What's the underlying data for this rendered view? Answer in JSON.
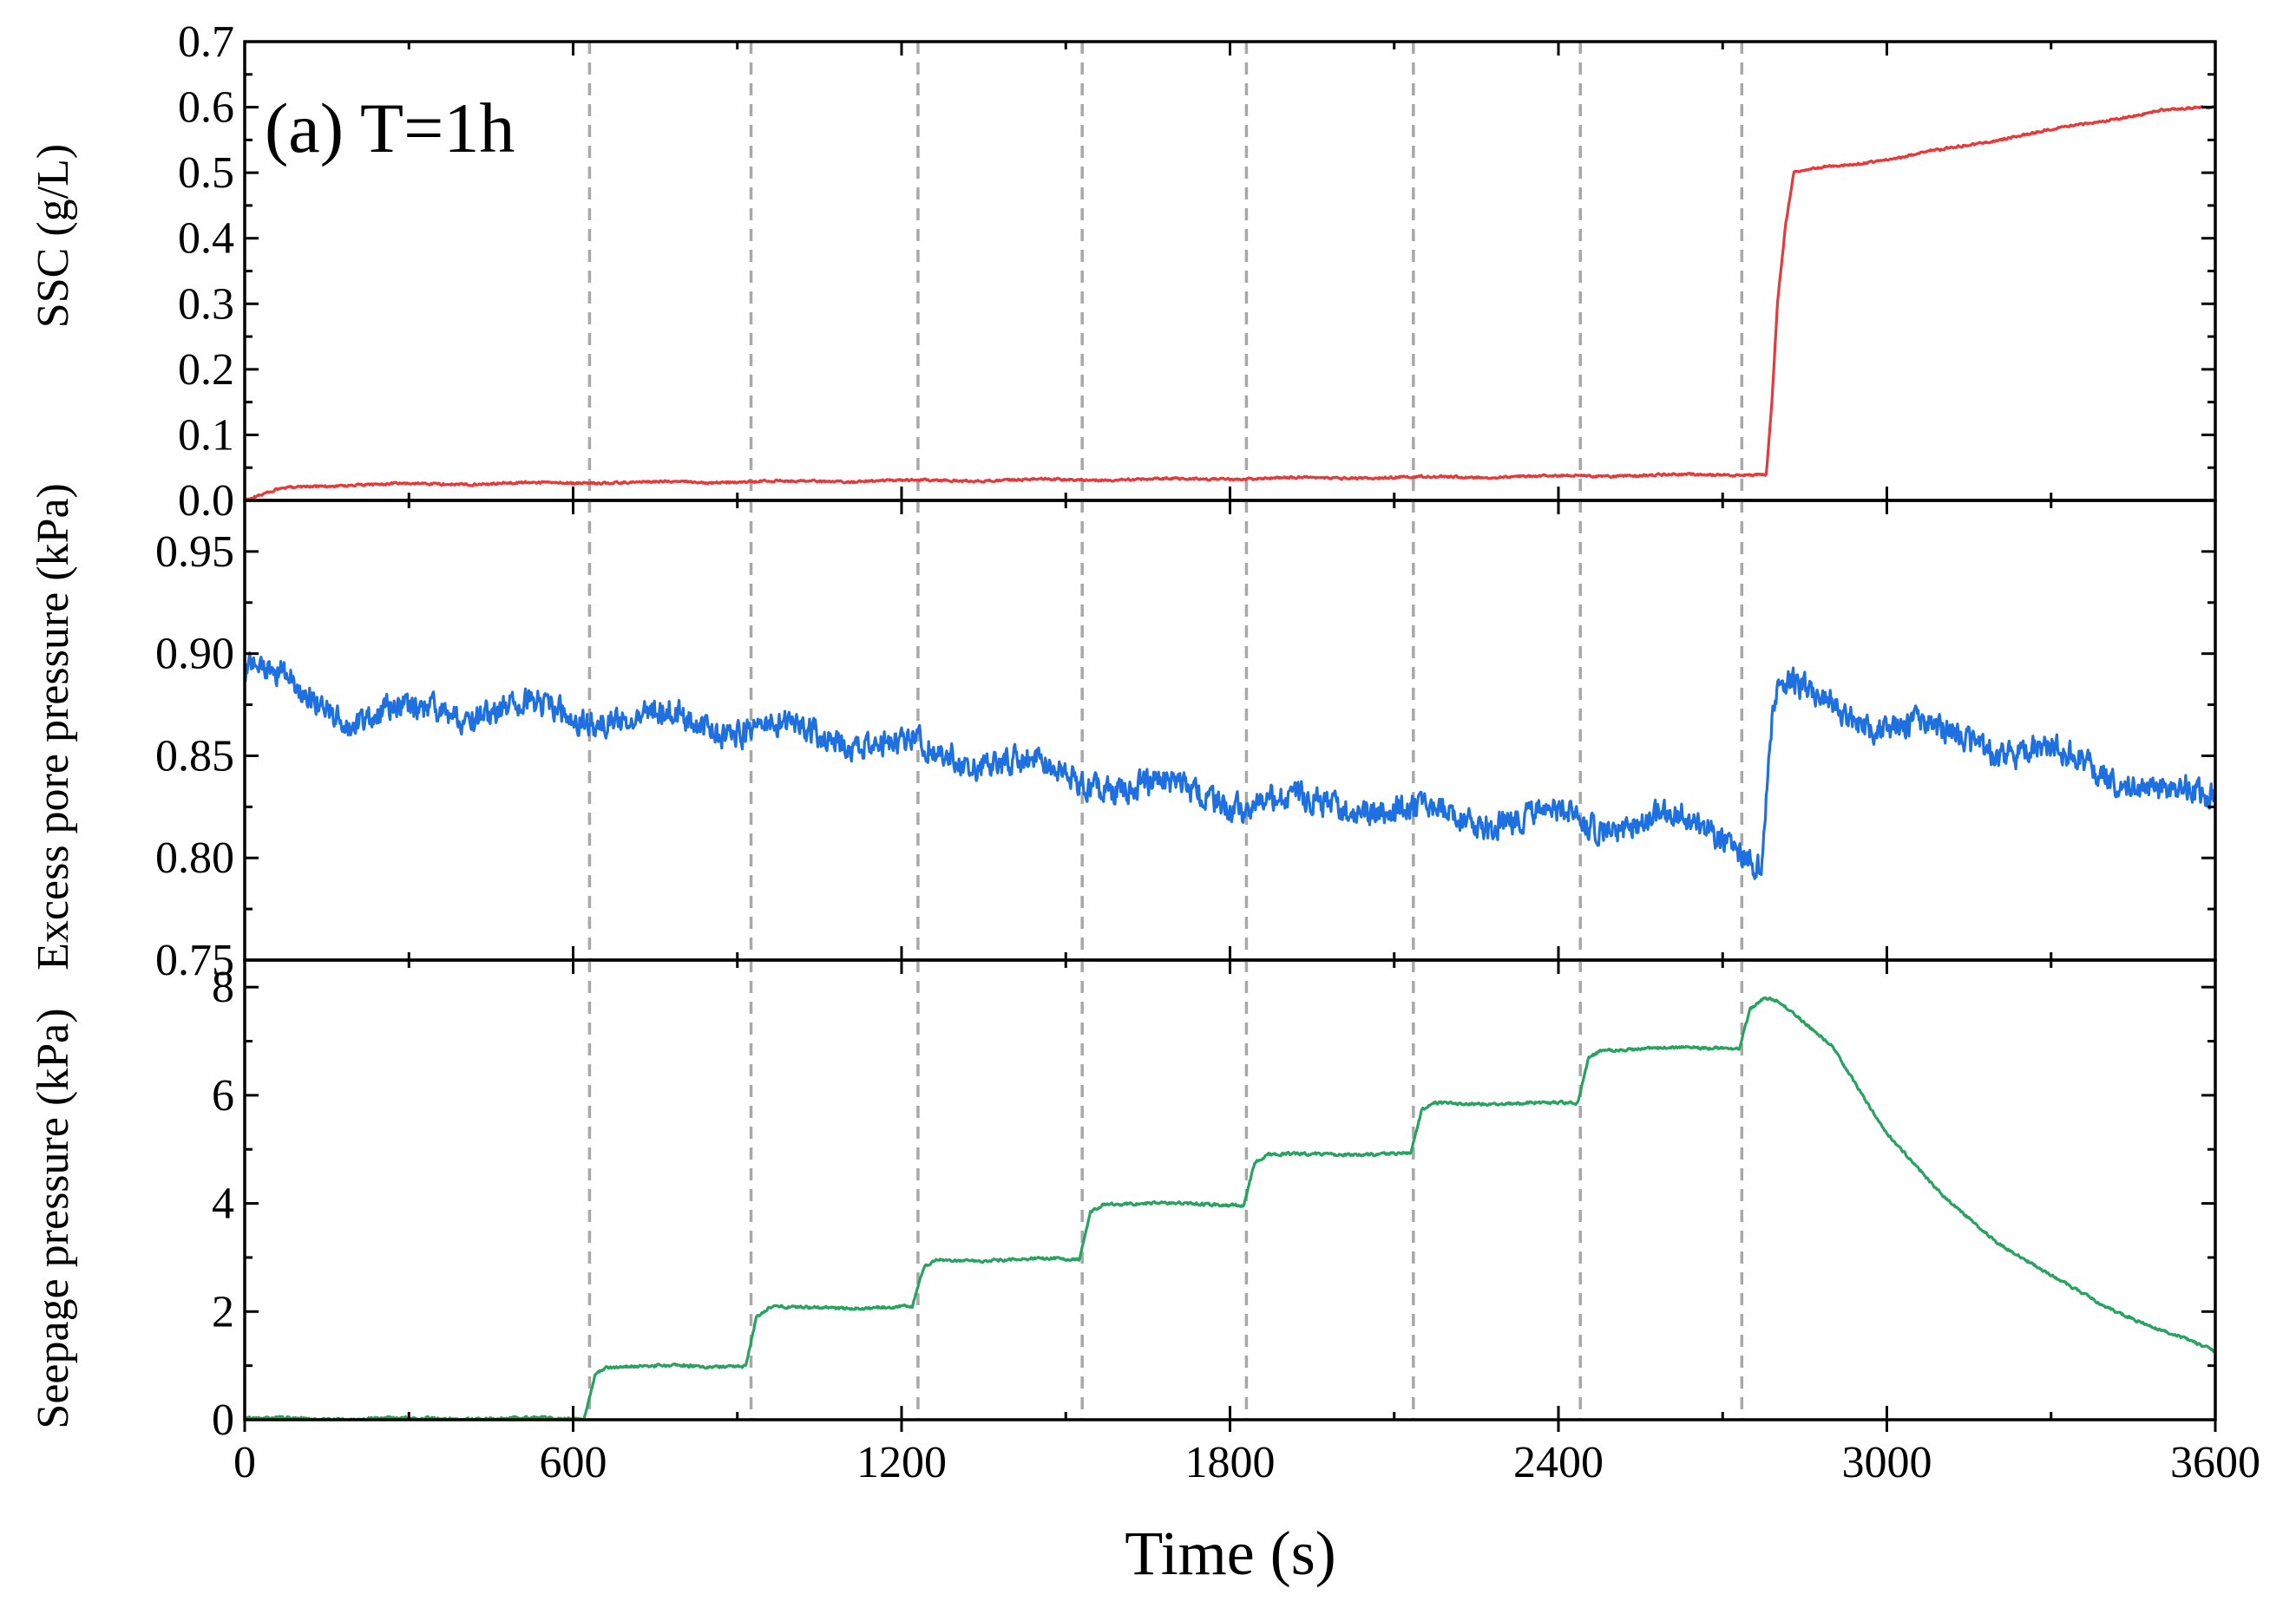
{
  "chart_data": {
    "type": "line",
    "panel_label": "(a) T=1h",
    "x": {
      "label": "Time (s)",
      "range": [
        0,
        3600
      ],
      "ticks": [
        0,
        600,
        1200,
        1800,
        2400,
        3000,
        3600
      ],
      "tick_labels": [
        "0",
        "600",
        "1200",
        "1800",
        "2400",
        "3000",
        "3600"
      ]
    },
    "reference_lines_x": [
      630,
      925,
      1230,
      1530,
      1830,
      2135,
      2440,
      2735
    ],
    "panels": [
      {
        "name": "ssc",
        "ylabel": "SSC (g/L)",
        "color": "#e8393a",
        "ylim": [
          0,
          0.7
        ],
        "ticks": [
          0.0,
          0.1,
          0.2,
          0.3,
          0.4,
          0.5,
          0.6,
          0.7
        ],
        "tick_labels": [
          "0.0",
          "0.1",
          "0.2",
          "0.3",
          "0.4",
          "0.5",
          "0.6",
          "0.7"
        ],
        "noise": 0.004,
        "points": [
          [
            0,
            0.0
          ],
          [
            30,
            0.008
          ],
          [
            60,
            0.016
          ],
          [
            100,
            0.021
          ],
          [
            200,
            0.024
          ],
          [
            600,
            0.027
          ],
          [
            1200,
            0.03
          ],
          [
            1800,
            0.033
          ],
          [
            2400,
            0.037
          ],
          [
            2780,
            0.04
          ],
          [
            2790,
            0.15
          ],
          [
            2800,
            0.3
          ],
          [
            2815,
            0.42
          ],
          [
            2830,
            0.5
          ],
          [
            2900,
            0.51
          ],
          [
            3000,
            0.52
          ],
          [
            3100,
            0.535
          ],
          [
            3200,
            0.55
          ],
          [
            3300,
            0.565
          ],
          [
            3400,
            0.58
          ],
          [
            3500,
            0.595
          ],
          [
            3600,
            0.6
          ]
        ]
      },
      {
        "name": "excess-pore-pressure",
        "ylabel": "Excess pore pressure (kPa)",
        "color": "#1e6fe0",
        "ylim": [
          0.75,
          0.975
        ],
        "ticks": [
          0.75,
          0.8,
          0.85,
          0.9,
          0.95
        ],
        "tick_labels": [
          "0.75",
          "0.80",
          "0.85",
          "0.90",
          "0.95"
        ],
        "noise": 0.016,
        "points": [
          [
            0,
            0.893
          ],
          [
            100,
            0.883
          ],
          [
            200,
            0.869
          ],
          [
            300,
            0.87
          ],
          [
            400,
            0.873
          ],
          [
            500,
            0.872
          ],
          [
            630,
            0.87
          ],
          [
            800,
            0.868
          ],
          [
            925,
            0.863
          ],
          [
            1100,
            0.86
          ],
          [
            1230,
            0.853
          ],
          [
            1400,
            0.847
          ],
          [
            1530,
            0.838
          ],
          [
            1700,
            0.833
          ],
          [
            1830,
            0.827
          ],
          [
            2000,
            0.826
          ],
          [
            2135,
            0.822
          ],
          [
            2300,
            0.82
          ],
          [
            2440,
            0.818
          ],
          [
            2600,
            0.818
          ],
          [
            2700,
            0.812
          ],
          [
            2770,
            0.798
          ],
          [
            2790,
            0.87
          ],
          [
            2800,
            0.885
          ],
          [
            2900,
            0.875
          ],
          [
            3000,
            0.865
          ],
          [
            3100,
            0.86
          ],
          [
            3200,
            0.855
          ],
          [
            3300,
            0.85
          ],
          [
            3400,
            0.842
          ],
          [
            3500,
            0.832
          ],
          [
            3600,
            0.828
          ]
        ]
      },
      {
        "name": "seepage-pressure",
        "ylabel": "Seepage pressure (kPa)",
        "color": "#27a35f",
        "ylim": [
          0,
          8.5
        ],
        "ticks": [
          0,
          2,
          4,
          6,
          8
        ],
        "tick_labels": [
          "0",
          "2",
          "4",
          "6",
          "8"
        ],
        "noise": 0.06,
        "points": [
          [
            0,
            0.02
          ],
          [
            620,
            0.02
          ],
          [
            640,
            0.85
          ],
          [
            660,
            0.98
          ],
          [
            915,
            1.0
          ],
          [
            935,
            1.9
          ],
          [
            960,
            2.07
          ],
          [
            1220,
            2.08
          ],
          [
            1240,
            2.8
          ],
          [
            1265,
            2.95
          ],
          [
            1525,
            2.97
          ],
          [
            1545,
            3.85
          ],
          [
            1570,
            4.0
          ],
          [
            1825,
            3.98
          ],
          [
            1845,
            4.75
          ],
          [
            1870,
            4.9
          ],
          [
            2130,
            4.92
          ],
          [
            2150,
            5.7
          ],
          [
            2175,
            5.85
          ],
          [
            2435,
            5.85
          ],
          [
            2455,
            6.7
          ],
          [
            2480,
            6.85
          ],
          [
            2730,
            6.88
          ],
          [
            2750,
            7.6
          ],
          [
            2775,
            7.8
          ],
          [
            2800,
            7.75
          ],
          [
            2900,
            6.9
          ],
          [
            3000,
            5.3
          ],
          [
            3100,
            4.15
          ],
          [
            3200,
            3.3
          ],
          [
            3300,
            2.65
          ],
          [
            3400,
            2.1
          ],
          [
            3500,
            1.65
          ],
          [
            3600,
            1.27
          ]
        ]
      }
    ]
  }
}
